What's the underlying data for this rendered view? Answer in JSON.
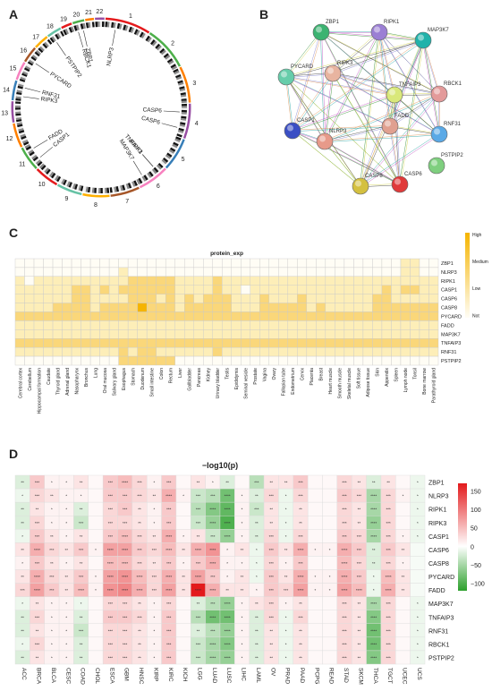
{
  "panel_labels": {
    "a": "A",
    "b": "B",
    "c": "C",
    "d": "D"
  },
  "colors": {
    "chrom_ring": [
      "#e41a1c",
      "#4daf4a",
      "#ff7f00",
      "#984ea3",
      "#377eb8",
      "#f781bf",
      "#a65628",
      "#ffb000",
      "#66c2a5"
    ],
    "heat_c_high": "#f5b400",
    "heat_c_low": "#fdf3d0",
    "heat_d_pos": "#e31a1c",
    "heat_d_neg": "#2ca02c",
    "heat_d_mid": "#ffffff"
  },
  "panelA": {
    "chromosomes": [
      "1",
      "2",
      "3",
      "4",
      "5",
      "6",
      "7",
      "8",
      "9",
      "10",
      "11",
      "12",
      "13",
      "14",
      "15",
      "16",
      "17",
      "18",
      "19",
      "20",
      "21",
      "22"
    ],
    "genes": [
      {
        "name": "NLRP3",
        "chrom": "1"
      },
      {
        "name": "CASP6",
        "chrom": "4"
      },
      {
        "name": "CASP6",
        "chrom": "4"
      },
      {
        "name": "RIPK1",
        "chrom": "6"
      },
      {
        "name": "MAP3K7",
        "chrom": "6"
      },
      {
        "name": "TNFAIP3",
        "chrom": "6"
      },
      {
        "name": "CASP1",
        "chrom": "11"
      },
      {
        "name": "FADD",
        "chrom": "11"
      },
      {
        "name": "RIPK3",
        "chrom": "14"
      },
      {
        "name": "RNF31",
        "chrom": "14"
      },
      {
        "name": "PYCARD",
        "chrom": "16"
      },
      {
        "name": "PSTPIP2",
        "chrom": "18"
      },
      {
        "name": "RBCK1",
        "chrom": "20"
      },
      {
        "name": "ZBP1",
        "chrom": "20"
      }
    ]
  },
  "panelB": {
    "nodes": [
      {
        "name": "ZBP1",
        "color": "#3cb371"
      },
      {
        "name": "RIPK1",
        "color": "#9b7fd4"
      },
      {
        "name": "MAP3K7",
        "color": "#20b2aa"
      },
      {
        "name": "PYCARD",
        "color": "#66cdaa"
      },
      {
        "name": "RIPK3",
        "color": "#e8b4a0"
      },
      {
        "name": "RBCK1",
        "color": "#e39a9a"
      },
      {
        "name": "TNFAIP3",
        "color": "#d9e87a"
      },
      {
        "name": "CASP1",
        "color": "#3b4fc4"
      },
      {
        "name": "FADD",
        "color": "#e0a090"
      },
      {
        "name": "RNF31",
        "color": "#5aa9e6"
      },
      {
        "name": "NLRP3",
        "color": "#e79a8a"
      },
      {
        "name": "PSTPIP2",
        "color": "#7fcf7f"
      },
      {
        "name": "CASP6",
        "color": "#e03a3a"
      },
      {
        "name": "CASP8",
        "color": "#d4c040"
      }
    ]
  },
  "chart_data": [
    {
      "type": "heatmap",
      "title": "protein_exp",
      "rows": [
        "ZBP1",
        "NLRP3",
        "RIPK1",
        "CASP1",
        "CASP6",
        "CASP8",
        "PYCARD",
        "FADD",
        "MAP3K7",
        "TNFAIP3",
        "RNF31",
        "PSTPIP2"
      ],
      "columns": [
        "Cerebral cortex",
        "Cerebellum",
        "Hippocampal formation",
        "Caudate",
        "Thyroid gland",
        "Adrenal gland",
        "Nasopharynx",
        "Bronchus",
        "Lung",
        "Oral mucosa",
        "Salivary gland",
        "Esophagus",
        "Stomach",
        "Duodenum",
        "Small intestine",
        "Colon",
        "Rectum",
        "Liver",
        "Gallbladder",
        "Pancreas",
        "Kidney",
        "Urinary bladder",
        "Testis",
        "Epididymis",
        "Seminal vesicle",
        "Prostate",
        "Vagina",
        "Ovary",
        "Fallopian tube",
        "Endometrium",
        "Cervix",
        "Placenta",
        "Breast",
        "Heart muscle",
        "Smooth muscle",
        "Skeletal muscle",
        "Soft tissue",
        "Adipose tissue",
        "Skin",
        "Appendix",
        "Spleen",
        "Lymph node",
        "Tonsil",
        "Bone marrow",
        "Parathyroid gland"
      ],
      "legend": {
        "levels": [
          "High",
          "Medium",
          "Low",
          "Not"
        ]
      },
      "values": [
        [
          0,
          0,
          0,
          0,
          0,
          0,
          0,
          0,
          0,
          0,
          0,
          0,
          0,
          0,
          0,
          0,
          0,
          0,
          0,
          0,
          0,
          0,
          0,
          0,
          0,
          0,
          0,
          0,
          0,
          0,
          0,
          0,
          0,
          0,
          0,
          0,
          0,
          0,
          0,
          0,
          0,
          1,
          1,
          0,
          0
        ],
        [
          0,
          0,
          0,
          0,
          0,
          0,
          0,
          0,
          0,
          0,
          0,
          1,
          0,
          0,
          0,
          0,
          0,
          0,
          0,
          0,
          0,
          0,
          0,
          0,
          0,
          0,
          0,
          0,
          0,
          0,
          0,
          0,
          0,
          0,
          0,
          0,
          0,
          0,
          0,
          0,
          0,
          1,
          1,
          0,
          0
        ],
        [
          1,
          0,
          1,
          1,
          1,
          1,
          1,
          1,
          1,
          1,
          1,
          1,
          2,
          2,
          2,
          2,
          2,
          1,
          1,
          1,
          1,
          2,
          1,
          1,
          1,
          1,
          1,
          1,
          1,
          1,
          1,
          1,
          1,
          1,
          1,
          1,
          1,
          1,
          1,
          1,
          1,
          1,
          1,
          1,
          1
        ],
        [
          1,
          1,
          1,
          1,
          1,
          1,
          2,
          2,
          1,
          2,
          1,
          2,
          2,
          2,
          2,
          2,
          2,
          1,
          1,
          1,
          1,
          2,
          1,
          1,
          0,
          1,
          1,
          1,
          1,
          1,
          1,
          1,
          1,
          1,
          1,
          1,
          1,
          1,
          1,
          2,
          1,
          2,
          2,
          1,
          1
        ],
        [
          1,
          1,
          1,
          1,
          1,
          1,
          2,
          2,
          1,
          1,
          1,
          1,
          2,
          2,
          2,
          1,
          2,
          1,
          2,
          1,
          2,
          2,
          2,
          1,
          1,
          1,
          2,
          1,
          1,
          1,
          2,
          1,
          1,
          1,
          1,
          1,
          1,
          1,
          2,
          2,
          1,
          1,
          1,
          1,
          1
        ],
        [
          1,
          1,
          1,
          1,
          2,
          2,
          2,
          2,
          1,
          2,
          2,
          2,
          2,
          3,
          2,
          2,
          2,
          1,
          2,
          2,
          2,
          2,
          2,
          1,
          1,
          1,
          2,
          2,
          2,
          2,
          2,
          1,
          2,
          1,
          1,
          1,
          1,
          1,
          2,
          2,
          2,
          2,
          2,
          2,
          2
        ],
        [
          2,
          2,
          2,
          2,
          2,
          2,
          2,
          2,
          2,
          2,
          2,
          2,
          2,
          2,
          2,
          2,
          2,
          2,
          2,
          2,
          2,
          2,
          2,
          2,
          2,
          2,
          2,
          2,
          2,
          2,
          2,
          2,
          2,
          2,
          2,
          2,
          2,
          2,
          2,
          2,
          2,
          2,
          2,
          2,
          2
        ],
        [
          1,
          1,
          1,
          1,
          1,
          1,
          1,
          1,
          1,
          1,
          1,
          1,
          1,
          1,
          1,
          1,
          1,
          1,
          1,
          1,
          1,
          1,
          1,
          1,
          1,
          1,
          1,
          1,
          1,
          1,
          1,
          1,
          1,
          1,
          1,
          1,
          1,
          1,
          1,
          1,
          1,
          1,
          1,
          1,
          1
        ],
        [
          1,
          1,
          1,
          1,
          1,
          1,
          1,
          1,
          1,
          1,
          1,
          1,
          1,
          1,
          1,
          1,
          1,
          1,
          1,
          1,
          1,
          1,
          1,
          1,
          1,
          1,
          1,
          1,
          1,
          1,
          1,
          1,
          1,
          1,
          1,
          1,
          1,
          1,
          1,
          1,
          1,
          1,
          1,
          1,
          1
        ],
        [
          2,
          2,
          2,
          2,
          2,
          2,
          2,
          2,
          2,
          2,
          2,
          2,
          2,
          2,
          2,
          2,
          2,
          2,
          2,
          2,
          2,
          2,
          2,
          2,
          2,
          2,
          2,
          2,
          2,
          2,
          2,
          2,
          2,
          2,
          2,
          2,
          2,
          2,
          2,
          2,
          2,
          2,
          2,
          2,
          2
        ],
        [
          1,
          1,
          1,
          1,
          1,
          1,
          1,
          1,
          1,
          1,
          1,
          2,
          1,
          2,
          2,
          1,
          1,
          1,
          1,
          1,
          1,
          2,
          1,
          1,
          1,
          1,
          1,
          1,
          1,
          1,
          1,
          1,
          1,
          1,
          1,
          1,
          1,
          1,
          1,
          1,
          1,
          1,
          1,
          1,
          1
        ],
        [
          0,
          0,
          0,
          0,
          0,
          0,
          0,
          0,
          0,
          0,
          0,
          2,
          2,
          2,
          2,
          2,
          2,
          0,
          0,
          0,
          0,
          0,
          0,
          0,
          0,
          0,
          0,
          0,
          0,
          0,
          0,
          0,
          0,
          0,
          0,
          0,
          0,
          0,
          0,
          0,
          0,
          0,
          0,
          0,
          0
        ]
      ]
    },
    {
      "type": "heatmap",
      "title": "−log10(p)",
      "rows": [
        "ZBP1",
        "NLRP3",
        "RIPK1",
        "RIPK3",
        "CASP1",
        "CASP6",
        "CASP8",
        "PYCARD",
        "FADD",
        "MAP3K7",
        "TNFAIP3",
        "RNF31",
        "RBCK1",
        "PSTPIP2"
      ],
      "columns": [
        "ACC",
        "BRCA",
        "BLCA",
        "CESC",
        "COAD",
        "CHOL",
        "ESCA",
        "GBM",
        "HNSC",
        "KIRP",
        "KIRC",
        "KICH",
        "LGG",
        "LUAD",
        "LUSC",
        "LIHC",
        "LAML",
        "OV",
        "PRAD",
        "PAAD",
        "PCPG",
        "READ",
        "STAD",
        "SKCM",
        "THCA",
        "TGCT",
        "UCEC",
        "UCS"
      ],
      "colorbar": {
        "ticks": [
          "150",
          "100",
          "50",
          "0",
          "−50",
          "−100"
        ],
        "vmin": -120,
        "vmax": 170
      },
      "values": [
        [
          -20,
          40,
          10,
          10,
          20,
          5,
          40,
          50,
          30,
          10,
          40,
          5,
          20,
          10,
          -20,
          5,
          -40,
          20,
          20,
          40,
          5,
          5,
          30,
          20,
          -20,
          20,
          5,
          -10
        ],
        [
          -10,
          30,
          20,
          10,
          10,
          5,
          40,
          40,
          30,
          20,
          60,
          10,
          -30,
          -40,
          -80,
          10,
          -20,
          30,
          -10,
          30,
          5,
          5,
          40,
          30,
          -50,
          30,
          10,
          -10
        ],
        [
          -20,
          20,
          10,
          10,
          -20,
          5,
          30,
          40,
          20,
          10,
          40,
          5,
          -40,
          -70,
          -90,
          10,
          -30,
          20,
          -10,
          20,
          5,
          5,
          30,
          20,
          -50,
          30,
          5,
          -10
        ],
        [
          -20,
          30,
          10,
          10,
          -30,
          5,
          30,
          30,
          20,
          10,
          40,
          5,
          -30,
          -60,
          -100,
          10,
          -20,
          20,
          -10,
          20,
          5,
          5,
          30,
          20,
          -60,
          30,
          5,
          -10
        ],
        [
          -10,
          40,
          20,
          10,
          20,
          5,
          40,
          50,
          30,
          20,
          60,
          10,
          20,
          -30,
          -60,
          10,
          -20,
          30,
          -10,
          30,
          5,
          5,
          40,
          30,
          -50,
          30,
          10,
          -10
        ],
        [
          20,
          60,
          30,
          20,
          40,
          10,
          70,
          70,
          40,
          30,
          50,
          20,
          60,
          80,
          10,
          20,
          -10,
          40,
          20,
          60,
          10,
          10,
          60,
          40,
          -20,
          40,
          20,
          -5
        ],
        [
          10,
          40,
          20,
          10,
          20,
          5,
          50,
          50,
          30,
          20,
          40,
          10,
          40,
          60,
          10,
          10,
          -10,
          30,
          10,
          40,
          5,
          5,
          50,
          30,
          -20,
          30,
          10,
          -5
        ],
        [
          20,
          60,
          30,
          20,
          40,
          10,
          70,
          80,
          50,
          30,
          60,
          20,
          70,
          40,
          10,
          20,
          -10,
          40,
          20,
          60,
          10,
          10,
          60,
          40,
          -10,
          50,
          20,
          -5
        ],
        [
          30,
          70,
          40,
          20,
          50,
          10,
          80,
          90,
          60,
          30,
          70,
          20,
          170,
          60,
          20,
          20,
          10,
          40,
          30,
          70,
          10,
          10,
          70,
          50,
          -10,
          60,
          20,
          -5
        ],
        [
          -10,
          20,
          10,
          10,
          -10,
          5,
          30,
          30,
          20,
          10,
          30,
          5,
          -20,
          -40,
          -60,
          10,
          20,
          30,
          10,
          20,
          5,
          5,
          30,
          20,
          -50,
          30,
          5,
          -10
        ],
        [
          -20,
          30,
          10,
          10,
          -20,
          5,
          40,
          40,
          30,
          10,
          40,
          5,
          -40,
          -80,
          -80,
          10,
          -20,
          30,
          -10,
          30,
          5,
          5,
          30,
          20,
          -70,
          30,
          5,
          -10
        ],
        [
          -20,
          20,
          10,
          10,
          -30,
          5,
          30,
          30,
          20,
          10,
          40,
          5,
          -20,
          -40,
          -60,
          10,
          -20,
          20,
          -10,
          20,
          5,
          5,
          30,
          20,
          -80,
          30,
          5,
          -10
        ],
        [
          -10,
          30,
          10,
          10,
          -20,
          5,
          30,
          30,
          20,
          10,
          40,
          5,
          -30,
          -50,
          -70,
          10,
          -20,
          20,
          -10,
          20,
          5,
          5,
          30,
          20,
          -80,
          30,
          5,
          -10
        ],
        [
          -20,
          20,
          10,
          10,
          -20,
          5,
          30,
          30,
          20,
          10,
          40,
          5,
          -30,
          -50,
          -60,
          10,
          -20,
          20,
          -10,
          20,
          5,
          5,
          30,
          20,
          -70,
          30,
          5,
          -10
        ]
      ]
    }
  ]
}
